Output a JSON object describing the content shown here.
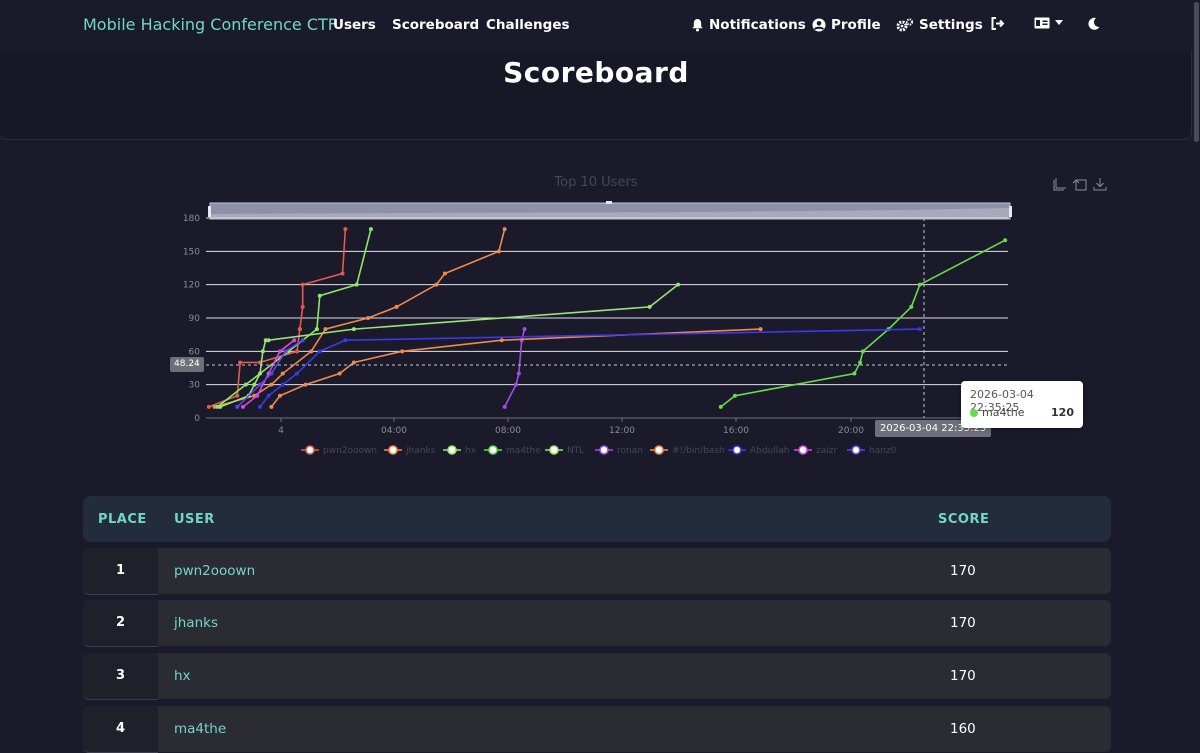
{
  "navbar": {
    "brand": "Mobile Hacking Conference CTF",
    "links": [
      "Users",
      "Scoreboard",
      "Challenges"
    ],
    "notifications_label": "Notifications",
    "profile_label": "Profile",
    "settings_label": "Settings"
  },
  "page": {
    "title": "Scoreboard"
  },
  "chart_data": {
    "type": "line",
    "title": "Top 10 Users",
    "xlabel": "",
    "ylabel": "",
    "ylim": [
      0,
      180
    ],
    "y_ticks": [
      0,
      30,
      60,
      90,
      120,
      150,
      180
    ],
    "x_ticks": [
      "4",
      "04:00",
      "08:00",
      "12:00",
      "16:00",
      "20:00"
    ],
    "grid": true,
    "legend_position": "bottom",
    "x_range_hours": [
      0,
      28.2
    ],
    "series": [
      {
        "name": "pwn2ooown",
        "color": "#e55a4f",
        "x": [
          0.1,
          1.1,
          1.2,
          1.9,
          3.2,
          3.2,
          3.3,
          3.3,
          3.4,
          3.4,
          4.8,
          4.9
        ],
        "y": [
          10,
          20,
          50,
          50,
          60,
          60,
          80,
          80,
          100,
          120,
          130,
          170
        ]
      },
      {
        "name": "jhanks",
        "color": "#f28b49",
        "x": [
          0.3,
          1.7,
          2.3,
          2.7,
          3.7,
          4.2,
          5.7,
          6.7,
          8.1,
          8.4,
          10.3,
          10.5
        ],
        "y": [
          10,
          20,
          30,
          40,
          60,
          80,
          90,
          100,
          120,
          130,
          150,
          170
        ]
      },
      {
        "name": "hx",
        "color": "#8ee864",
        "x": [
          0.4,
          1.4,
          2.9,
          3.9,
          4.0,
          5.3,
          5.8
        ],
        "y": [
          10,
          30,
          60,
          80,
          110,
          120,
          170
        ]
      },
      {
        "name": "ma4the",
        "color": "#67db4c",
        "x": [
          18.1,
          18.6,
          22.8,
          23.0,
          23.1,
          24.0,
          24.8,
          25.1,
          28.1
        ],
        "y": [
          10,
          20,
          40,
          50,
          60,
          80,
          100,
          120,
          160
        ]
      },
      {
        "name": "NTL",
        "color": "#9be373",
        "x": [
          0.5,
          1.5,
          1.7,
          1.9,
          2.0,
          2.1,
          2.2,
          5.2,
          15.6,
          16.6
        ],
        "y": [
          10,
          20,
          30,
          40,
          60,
          70,
          70,
          80,
          100,
          120
        ]
      },
      {
        "name": "ronan",
        "color": "#a34de8",
        "x": [
          10.5,
          10.9,
          11.0,
          11.1,
          11.2
        ],
        "y": [
          10,
          30,
          40,
          70,
          80
        ]
      },
      {
        "name": "#!/bin/bash",
        "color": "#ee8a4e",
        "x": [
          2.3,
          2.6,
          3.5,
          4.7,
          5.2,
          6.9,
          10.4,
          19.5
        ],
        "y": [
          10,
          20,
          30,
          40,
          50,
          60,
          70,
          80
        ]
      },
      {
        "name": "Abdullah",
        "color": "#3c38e8",
        "x": [
          1.9,
          2.2,
          2.7,
          3.2,
          4.0,
          4.9,
          25.1
        ],
        "y": [
          10,
          20,
          30,
          40,
          60,
          70,
          80
        ]
      },
      {
        "name": "zaizr",
        "color": "#d24be0",
        "x": [
          1.3,
          1.8,
          2.2,
          2.6,
          3.1
        ],
        "y": [
          10,
          20,
          40,
          60,
          70
        ]
      },
      {
        "name": "hanz0",
        "color": "#5d46e6",
        "x": [
          1.1,
          1.9,
          2.3,
          2.8,
          3.4
        ],
        "y": [
          10,
          30,
          40,
          60,
          70
        ]
      }
    ],
    "tooltip": {
      "date": "2026-03-04 22:35:25",
      "series": "ma4the",
      "value": "120"
    },
    "crosshair": {
      "x_label": "2026-03-04 22:35:25",
      "y_label": "48.24"
    }
  },
  "table": {
    "headers": {
      "place": "PLACE",
      "user": "USER",
      "score": "SCORE"
    },
    "rows": [
      {
        "place": "1",
        "user": "pwn2ooown",
        "score": "170"
      },
      {
        "place": "2",
        "user": "jhanks",
        "score": "170"
      },
      {
        "place": "3",
        "user": "hx",
        "score": "170"
      },
      {
        "place": "4",
        "user": "ma4the",
        "score": "160"
      }
    ]
  }
}
